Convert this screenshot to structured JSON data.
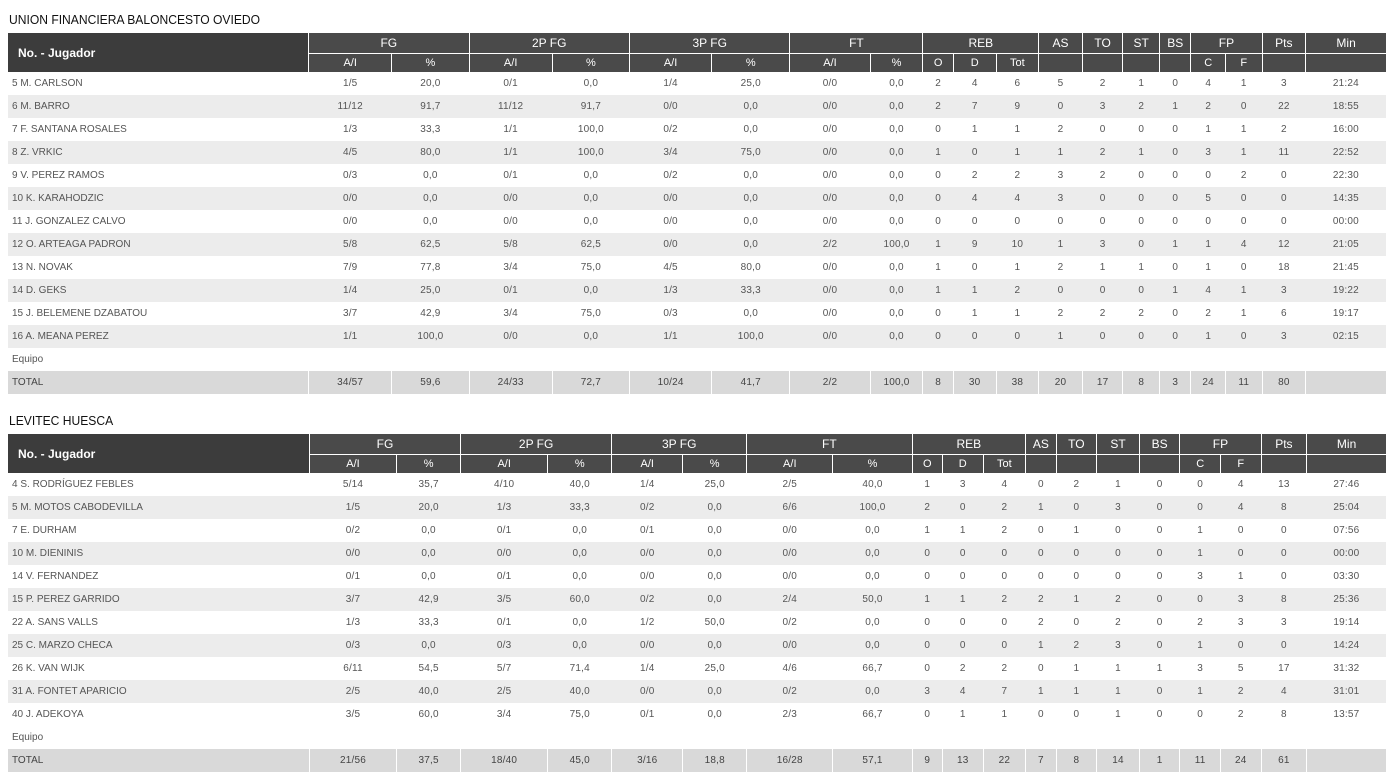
{
  "teams": [
    {
      "name": "UNION FINANCIERA BALONCESTO OVIEDO",
      "col_widths": [
        296,
        82,
        76,
        82,
        76,
        81,
        77,
        79,
        52,
        30,
        42,
        42,
        43,
        40,
        36,
        31,
        34,
        36,
        43,
        79
      ],
      "headers": {
        "name": "No. - Jugador",
        "groups": [
          "FG",
          "2P FG",
          "3P FG",
          "FT",
          "REB",
          "AS",
          "TO",
          "ST",
          "BS",
          "FP",
          "Pts",
          "Min"
        ],
        "sub": [
          "A/I",
          "%",
          "A/I",
          "%",
          "A/I",
          "%",
          "A/I",
          "%",
          "O",
          "D",
          "Tot",
          "",
          "",
          "",
          "",
          "C",
          "F",
          "",
          ""
        ]
      },
      "players": [
        [
          "5 M. CARLSON",
          "1/5",
          "20,0",
          "0/1",
          "0,0",
          "1/4",
          "25,0",
          "0/0",
          "0,0",
          "2",
          "4",
          "6",
          "5",
          "2",
          "1",
          "0",
          "4",
          "1",
          "3",
          "21:24"
        ],
        [
          "6 M. BARRO",
          "11/12",
          "91,7",
          "11/12",
          "91,7",
          "0/0",
          "0,0",
          "0/0",
          "0,0",
          "2",
          "7",
          "9",
          "0",
          "3",
          "2",
          "1",
          "2",
          "0",
          "22",
          "18:55"
        ],
        [
          "7 F. SANTANA ROSALES",
          "1/3",
          "33,3",
          "1/1",
          "100,0",
          "0/2",
          "0,0",
          "0/0",
          "0,0",
          "0",
          "1",
          "1",
          "2",
          "0",
          "0",
          "0",
          "1",
          "1",
          "2",
          "16:00"
        ],
        [
          "8 Z. VRKIC",
          "4/5",
          "80,0",
          "1/1",
          "100,0",
          "3/4",
          "75,0",
          "0/0",
          "0,0",
          "1",
          "0",
          "1",
          "1",
          "2",
          "1",
          "0",
          "3",
          "1",
          "11",
          "22:52"
        ],
        [
          "9 V. PEREZ RAMOS",
          "0/3",
          "0,0",
          "0/1",
          "0,0",
          "0/2",
          "0,0",
          "0/0",
          "0,0",
          "0",
          "2",
          "2",
          "3",
          "2",
          "0",
          "0",
          "0",
          "2",
          "0",
          "22:30"
        ],
        [
          "10 K. KARAHODZIC",
          "0/0",
          "0,0",
          "0/0",
          "0,0",
          "0/0",
          "0,0",
          "0/0",
          "0,0",
          "0",
          "4",
          "4",
          "3",
          "0",
          "0",
          "0",
          "5",
          "0",
          "0",
          "14:35"
        ],
        [
          "11 J. GONZALEZ CALVO",
          "0/0",
          "0,0",
          "0/0",
          "0,0",
          "0/0",
          "0,0",
          "0/0",
          "0,0",
          "0",
          "0",
          "0",
          "0",
          "0",
          "0",
          "0",
          "0",
          "0",
          "0",
          "00:00"
        ],
        [
          "12 O. ARTEAGA PADRON",
          "5/8",
          "62,5",
          "5/8",
          "62,5",
          "0/0",
          "0,0",
          "2/2",
          "100,0",
          "1",
          "9",
          "10",
          "1",
          "3",
          "0",
          "1",
          "1",
          "4",
          "12",
          "21:05"
        ],
        [
          "13 N. NOVAK",
          "7/9",
          "77,8",
          "3/4",
          "75,0",
          "4/5",
          "80,0",
          "0/0",
          "0,0",
          "1",
          "0",
          "1",
          "2",
          "1",
          "1",
          "0",
          "1",
          "0",
          "18",
          "21:45"
        ],
        [
          "14 D. GEKS",
          "1/4",
          "25,0",
          "0/1",
          "0,0",
          "1/3",
          "33,3",
          "0/0",
          "0,0",
          "1",
          "1",
          "2",
          "0",
          "0",
          "0",
          "1",
          "4",
          "1",
          "3",
          "19:22"
        ],
        [
          "15 J. BELEMENE DZABATOU",
          "3/7",
          "42,9",
          "3/4",
          "75,0",
          "0/3",
          "0,0",
          "0/0",
          "0,0",
          "0",
          "1",
          "1",
          "2",
          "2",
          "2",
          "0",
          "2",
          "1",
          "6",
          "19:17"
        ],
        [
          "16 A. MEANA PEREZ",
          "1/1",
          "100,0",
          "0/0",
          "0,0",
          "1/1",
          "100,0",
          "0/0",
          "0,0",
          "0",
          "0",
          "0",
          "1",
          "0",
          "0",
          "0",
          "1",
          "0",
          "3",
          "02:15"
        ]
      ],
      "equipo": "Equipo",
      "total": [
        "TOTAL",
        "34/57",
        "59,6",
        "24/33",
        "72,7",
        "10/24",
        "41,7",
        "2/2",
        "100,0",
        "8",
        "30",
        "38",
        "20",
        "17",
        "8",
        "3",
        "24",
        "11",
        "80",
        ""
      ]
    },
    {
      "name": "LEVITEC HUESCA",
      "col_widths": [
        297,
        86,
        63,
        86,
        63,
        70,
        63,
        85,
        78,
        30,
        40,
        42,
        30,
        40,
        42,
        40,
        40,
        40,
        45,
        78
      ],
      "headers": {
        "name": "No. - Jugador",
        "groups": [
          "FG",
          "2P FG",
          "3P FG",
          "FT",
          "REB",
          "AS",
          "TO",
          "ST",
          "BS",
          "FP",
          "Pts",
          "Min"
        ],
        "sub": [
          "A/I",
          "%",
          "A/I",
          "%",
          "A/I",
          "%",
          "A/I",
          "%",
          "O",
          "D",
          "Tot",
          "",
          "",
          "",
          "",
          "C",
          "F",
          "",
          ""
        ]
      },
      "players": [
        [
          "4 S. RODRÍGUEZ FEBLES",
          "5/14",
          "35,7",
          "4/10",
          "40,0",
          "1/4",
          "25,0",
          "2/5",
          "40,0",
          "1",
          "3",
          "4",
          "0",
          "2",
          "1",
          "0",
          "0",
          "4",
          "13",
          "27:46"
        ],
        [
          "5 M. MOTOS CABODEVILLA",
          "1/5",
          "20,0",
          "1/3",
          "33,3",
          "0/2",
          "0,0",
          "6/6",
          "100,0",
          "2",
          "0",
          "2",
          "1",
          "0",
          "3",
          "0",
          "0",
          "4",
          "8",
          "25:04"
        ],
        [
          "7 E. DURHAM",
          "0/2",
          "0,0",
          "0/1",
          "0,0",
          "0/1",
          "0,0",
          "0/0",
          "0,0",
          "1",
          "1",
          "2",
          "0",
          "1",
          "0",
          "0",
          "1",
          "0",
          "0",
          "07:56"
        ],
        [
          "10 M. DIENINIS",
          "0/0",
          "0,0",
          "0/0",
          "0,0",
          "0/0",
          "0,0",
          "0/0",
          "0,0",
          "0",
          "0",
          "0",
          "0",
          "0",
          "0",
          "0",
          "1",
          "0",
          "0",
          "00:00"
        ],
        [
          "14 V. FERNANDEZ",
          "0/1",
          "0,0",
          "0/1",
          "0,0",
          "0/0",
          "0,0",
          "0/0",
          "0,0",
          "0",
          "0",
          "0",
          "0",
          "0",
          "0",
          "0",
          "3",
          "1",
          "0",
          "03:30"
        ],
        [
          "15 P. PEREZ GARRIDO",
          "3/7",
          "42,9",
          "3/5",
          "60,0",
          "0/2",
          "0,0",
          "2/4",
          "50,0",
          "1",
          "1",
          "2",
          "2",
          "1",
          "2",
          "0",
          "0",
          "3",
          "8",
          "25:36"
        ],
        [
          "22 A. SANS VALLS",
          "1/3",
          "33,3",
          "0/1",
          "0,0",
          "1/2",
          "50,0",
          "0/2",
          "0,0",
          "0",
          "0",
          "0",
          "2",
          "0",
          "2",
          "0",
          "2",
          "3",
          "3",
          "19:14"
        ],
        [
          "25 C. MARZO CHECA",
          "0/3",
          "0,0",
          "0/3",
          "0,0",
          "0/0",
          "0,0",
          "0/0",
          "0,0",
          "0",
          "0",
          "0",
          "1",
          "2",
          "3",
          "0",
          "1",
          "0",
          "0",
          "14:24"
        ],
        [
          "26 K. VAN WIJK",
          "6/11",
          "54,5",
          "5/7",
          "71,4",
          "1/4",
          "25,0",
          "4/6",
          "66,7",
          "0",
          "2",
          "2",
          "0",
          "1",
          "1",
          "1",
          "3",
          "5",
          "17",
          "31:32"
        ],
        [
          "31 A. FONTET APARICIO",
          "2/5",
          "40,0",
          "2/5",
          "40,0",
          "0/0",
          "0,0",
          "0/2",
          "0,0",
          "3",
          "4",
          "7",
          "1",
          "1",
          "1",
          "0",
          "1",
          "2",
          "4",
          "31:01"
        ],
        [
          "40 J. ADEKOYA",
          "3/5",
          "60,0",
          "3/4",
          "75,0",
          "0/1",
          "0,0",
          "2/3",
          "66,7",
          "0",
          "1",
          "1",
          "0",
          "0",
          "1",
          "0",
          "0",
          "2",
          "8",
          "13:57"
        ]
      ],
      "equipo": "Equipo",
      "total": [
        "TOTAL",
        "21/56",
        "37,5",
        "18/40",
        "45,0",
        "3/16",
        "18,8",
        "16/28",
        "57,1",
        "9",
        "13",
        "22",
        "7",
        "8",
        "14",
        "1",
        "11",
        "24",
        "61",
        ""
      ]
    }
  ]
}
